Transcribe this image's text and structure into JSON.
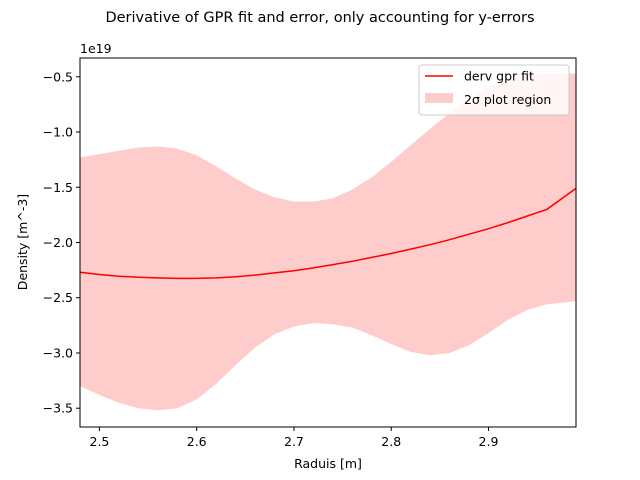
{
  "chart_data": {
    "type": "line",
    "title": "Derivative of GPR fit and error, only accounting for y-errors",
    "xlabel": "Raduis [m]",
    "ylabel": "Density [m^-3]",
    "offset_text": "1e19",
    "xlim": [
      2.48,
      2.99
    ],
    "ylim": [
      -3.67,
      -0.33
    ],
    "x_ticks": [
      2.5,
      2.6,
      2.7,
      2.8,
      2.9
    ],
    "x_tick_labels": [
      "2.5",
      "2.6",
      "2.7",
      "2.8",
      "2.9"
    ],
    "y_ticks": [
      -3.5,
      -3.0,
      -2.5,
      -2.0,
      -1.5,
      -1.0,
      -0.5
    ],
    "y_tick_labels": [
      "−3.5",
      "−3.0",
      "−2.5",
      "−2.0",
      "−1.5",
      "−1.0",
      "−0.5"
    ],
    "grid": false,
    "legend_position": "top-right",
    "x": [
      2.48,
      2.5,
      2.52,
      2.54,
      2.56,
      2.58,
      2.6,
      2.62,
      2.64,
      2.66,
      2.68,
      2.7,
      2.72,
      2.74,
      2.76,
      2.78,
      2.8,
      2.82,
      2.84,
      2.86,
      2.88,
      2.9,
      2.92,
      2.94,
      2.96,
      2.99
    ],
    "series": [
      {
        "name": "derv gpr fit",
        "kind": "line",
        "color": "#ff0000",
        "values": [
          -2.27,
          -2.29,
          -2.305,
          -2.315,
          -2.32,
          -2.325,
          -2.325,
          -2.32,
          -2.31,
          -2.295,
          -2.275,
          -2.255,
          -2.23,
          -2.2,
          -2.17,
          -2.135,
          -2.1,
          -2.06,
          -2.02,
          -1.975,
          -1.925,
          -1.875,
          -1.82,
          -1.76,
          -1.7,
          -1.51
        ]
      },
      {
        "name": "2σ plot region",
        "kind": "band",
        "color": "#ffcccc",
        "upper": [
          -1.23,
          -1.2,
          -1.17,
          -1.14,
          -1.13,
          -1.15,
          -1.21,
          -1.31,
          -1.42,
          -1.52,
          -1.59,
          -1.63,
          -1.63,
          -1.6,
          -1.52,
          -1.41,
          -1.27,
          -1.12,
          -0.97,
          -0.83,
          -0.71,
          -0.6,
          -0.52,
          -0.48,
          -0.47,
          -0.47
        ],
        "lower": [
          -3.3,
          -3.38,
          -3.45,
          -3.5,
          -3.52,
          -3.5,
          -3.42,
          -3.28,
          -3.11,
          -2.95,
          -2.83,
          -2.76,
          -2.73,
          -2.74,
          -2.77,
          -2.84,
          -2.92,
          -2.99,
          -3.02,
          -3.0,
          -2.93,
          -2.82,
          -2.7,
          -2.61,
          -2.56,
          -2.53
        ]
      }
    ]
  }
}
